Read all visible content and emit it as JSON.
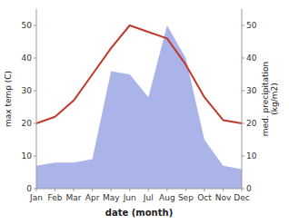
{
  "chart_data": {
    "type": "line",
    "xlabel": "date (month)",
    "ylabel": "max temp (C)",
    "y2label": "med. precipitation\n(kg/m2)",
    "categories": [
      "Jan",
      "Feb",
      "Mar",
      "Apr",
      "May",
      "Jun",
      "Jul",
      "Aug",
      "Sep",
      "Oct",
      "Nov",
      "Dec"
    ],
    "series": [
      {
        "type": "area",
        "axis": "y2",
        "color": "#aab4e8",
        "values": [
          7,
          8,
          8,
          9,
          36,
          35,
          28,
          50,
          40,
          15,
          7,
          6
        ]
      },
      {
        "type": "line",
        "axis": "y",
        "color": "#c0392b",
        "values": [
          20,
          22,
          27,
          35,
          43,
          50,
          48,
          46,
          38,
          28,
          21,
          20
        ]
      }
    ],
    "ylim": [
      0,
      55
    ],
    "yticks": [
      0,
      10,
      20,
      30,
      40,
      50
    ],
    "y2lim": [
      0,
      55
    ],
    "y2ticks": [
      0,
      10,
      20,
      30,
      40,
      50
    ],
    "grid": false
  }
}
